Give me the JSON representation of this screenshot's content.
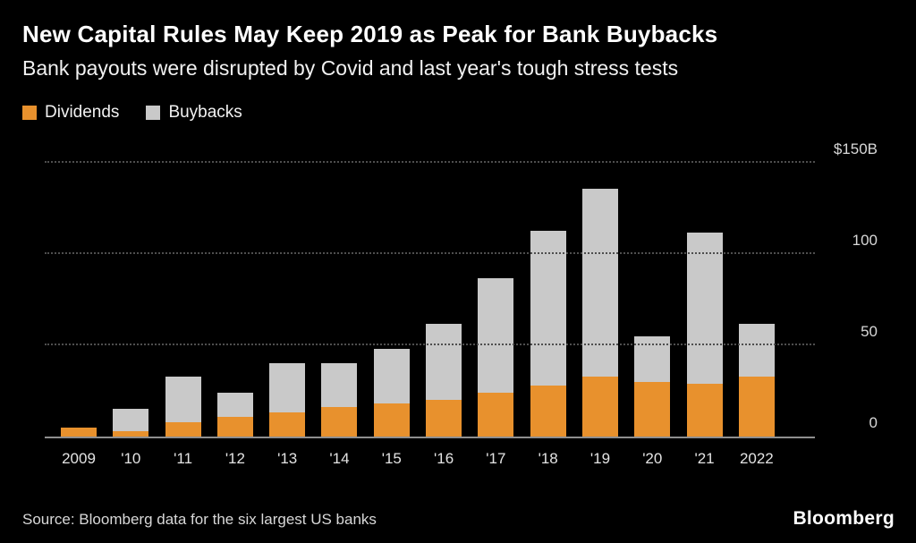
{
  "chart_data": {
    "type": "bar",
    "stacked": true,
    "title": "New Capital Rules May Keep 2019 as Peak for Bank Buybacks",
    "subtitle": "Bank payouts were disrupted by Covid and last year's tough stress tests",
    "categories": [
      "2009",
      "'10",
      "'11",
      "'12",
      "'13",
      "'14",
      "'15",
      "'16",
      "'17",
      "'18",
      "'19",
      "'20",
      "'21",
      "2022"
    ],
    "series": [
      {
        "name": "Dividends",
        "color": "#E8912D",
        "values": [
          5,
          3,
          8,
          11,
          13,
          16,
          18,
          20,
          24,
          28,
          33,
          30,
          29,
          33
        ]
      },
      {
        "name": "Buybacks",
        "color": "#C9C9C9",
        "values": [
          0,
          12,
          25,
          13,
          27,
          24,
          30,
          42,
          63,
          85,
          103,
          25,
          83,
          29
        ]
      }
    ],
    "xlabel": "",
    "ylabel": "",
    "ylim": [
      0,
      150
    ],
    "yticks": [
      {
        "value": 150,
        "label": "$150B"
      },
      {
        "value": 100,
        "label": "100"
      },
      {
        "value": 50,
        "label": "50"
      },
      {
        "value": 0,
        "label": "0"
      }
    ],
    "grid": "horizontal-dotted",
    "legend_position": "top-left",
    "units": "billions USD"
  },
  "footer": {
    "source": "Source: Bloomberg data for the six largest US banks",
    "brand": "Bloomberg"
  }
}
